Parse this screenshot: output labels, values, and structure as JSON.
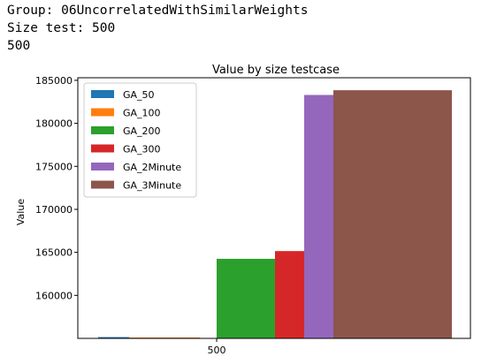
{
  "output": {
    "line1": "Group: 06UncorrelatedWithSimilarWeights",
    "line2": "Size test: 500",
    "line3": "500"
  },
  "chart_data": {
    "type": "bar",
    "title": "Value by size testcase",
    "xlabel": "",
    "ylabel": "Value",
    "categories": [
      "500"
    ],
    "ylim": [
      155000,
      185300
    ],
    "yticks": [
      160000,
      165000,
      170000,
      175000,
      180000,
      185000
    ],
    "grid": false,
    "legend_position": "upper-left",
    "series": [
      {
        "name": "GA_50",
        "values": [
          155150
        ],
        "color": "#1f77b4"
      },
      {
        "name": "GA_100",
        "values": [
          155100
        ],
        "color": "#ff7f0e"
      },
      {
        "name": "GA_200",
        "values": [
          164250
        ],
        "color": "#2ca02c"
      },
      {
        "name": "GA_300",
        "values": [
          165150
        ],
        "color": "#d62728"
      },
      {
        "name": "GA_2Minute",
        "values": [
          183300
        ],
        "color": "#9467bd"
      },
      {
        "name": "GA_3Minute",
        "values": [
          183850
        ],
        "color": "#8c564b"
      }
    ]
  }
}
